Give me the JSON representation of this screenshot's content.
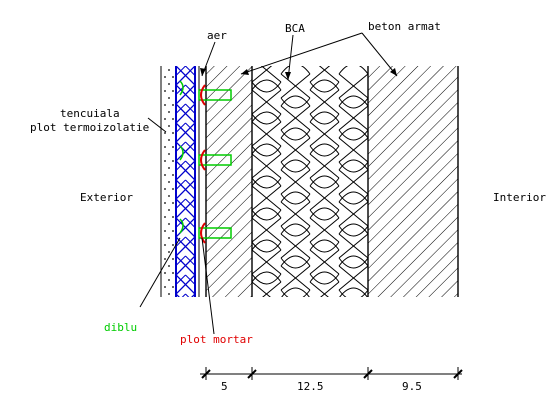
{
  "labels": {
    "aer": "aer",
    "bca": "BCA",
    "beton_armat": "beton armat",
    "tencuiala": "tencuiala",
    "plot_termoizolatie": "plot termoizolatie",
    "exterior": "Exterior",
    "interior": "Interior",
    "diblu": "diblu",
    "plot_mortar": "plot mortar"
  },
  "dimensions": [
    "5",
    "12.5",
    "9.5"
  ],
  "colors": {
    "line": "#000000",
    "insulation": "#0000cc",
    "diblu": "#00cc00",
    "mortar": "#e00000"
  }
}
